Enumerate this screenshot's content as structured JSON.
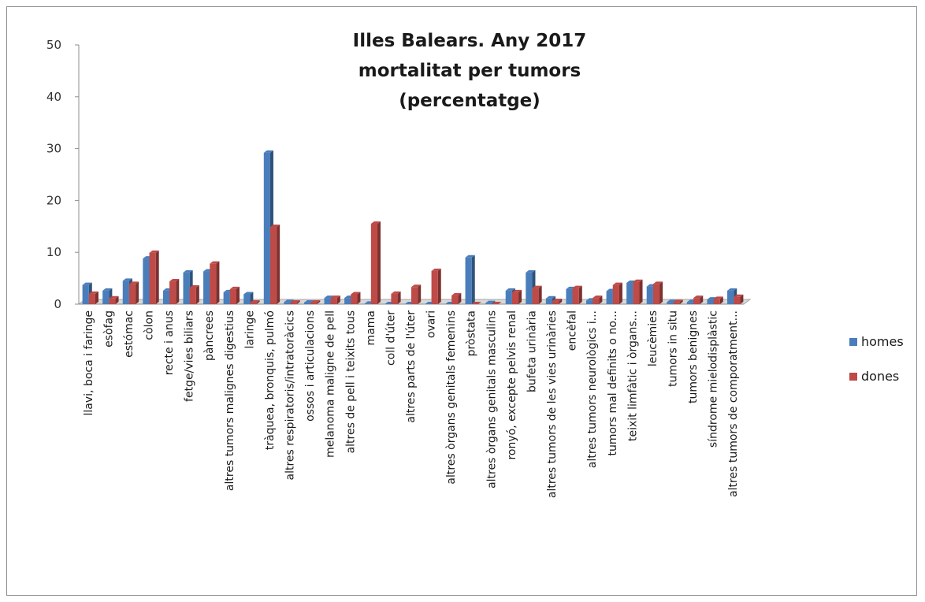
{
  "chart_data": {
    "type": "bar",
    "title_lines": [
      "Illes Balears. Any 2017",
      "mortalitat per tumors",
      "(percentatge)"
    ],
    "xlabel": "",
    "ylabel": "",
    "ylim": [
      0,
      50
    ],
    "yticks": [
      "0",
      "10",
      "20",
      "30",
      "40",
      "50"
    ],
    "grid": false,
    "legend_position": "right",
    "categories": [
      "llavi, boca i faringe",
      "esòfag",
      "estómac",
      "còlon",
      "recte i anus",
      "fetge/vies biliars",
      "pàncrees",
      "altres tumors malignes digestius",
      "laringe",
      "tràquea, bronquis, pulmó",
      "altres respiratoris/intratoràcics",
      "ossos i articulacions",
      "melanoma maligne de pell",
      "altres de pell i teixits tous",
      "mama",
      "coll d'úter",
      "altres parts de l'úter",
      "ovari",
      "altres òrgans genitals femenins",
      "pròstata",
      "altres òrgans genitals masculins",
      "ronyó, excepte pelvis renal",
      "bufeta urinària",
      "altres tumors de les vies urinàries",
      "encèfal",
      "altres tumors neurològics i...",
      "tumors mal definits o no...",
      "teixit limfàtic i òrgans...",
      "leucèmies",
      "tumors in situ",
      "tumors benignes",
      "síndrome mielodisplàstic",
      "altres tumors de comporatment..."
    ],
    "series": [
      {
        "name": "homes",
        "color": "#4a7ebb",
        "values": [
          3.7,
          2.6,
          4.5,
          8.8,
          2.6,
          6.1,
          6.3,
          2.3,
          1.9,
          29.2,
          0.4,
          0.3,
          1.2,
          1.2,
          0.1,
          0.0,
          0.0,
          0.0,
          0.0,
          9.0,
          0.2,
          2.6,
          6.1,
          1.1,
          2.9,
          0.7,
          2.5,
          4.1,
          3.4,
          0.4,
          0.4,
          0.9,
          2.6
        ]
      },
      {
        "name": "dones",
        "color": "#be4b48",
        "values": [
          2.0,
          1.1,
          3.9,
          9.9,
          4.4,
          3.2,
          7.8,
          2.9,
          0.3,
          14.9,
          0.3,
          0.3,
          1.2,
          1.9,
          15.5,
          2.0,
          3.3,
          6.4,
          1.7,
          0.0,
          0.0,
          2.3,
          3.1,
          0.6,
          3.1,
          1.2,
          3.7,
          4.3,
          3.9,
          0.4,
          1.2,
          1.0,
          1.4
        ]
      }
    ]
  }
}
